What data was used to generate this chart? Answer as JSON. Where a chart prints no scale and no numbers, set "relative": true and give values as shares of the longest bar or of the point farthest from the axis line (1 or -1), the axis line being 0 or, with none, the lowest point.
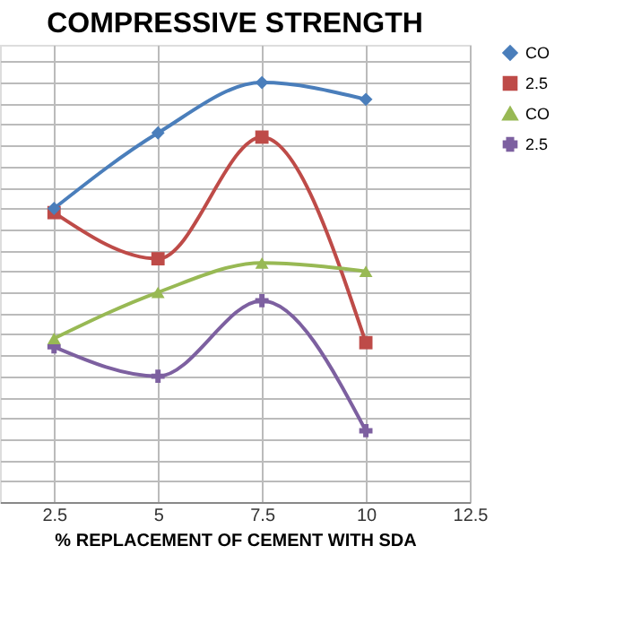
{
  "chart_data": {
    "type": "line",
    "title": "COMPRESSIVE STRENGTH",
    "xlabel": "% REPLACEMENT OF CEMENT WITH SDA",
    "relative": true,
    "x": [
      2.5,
      5,
      7.5,
      10
    ],
    "xlim": [
      1.2,
      12.5
    ],
    "xticks": [
      2.5,
      5,
      7.5,
      10,
      12.5
    ],
    "grid": true,
    "legend": "right",
    "line_style": "solid",
    "series": [
      {
        "name": "CO",
        "color": "#4a7ebb",
        "marker": "diamond",
        "values": [
          0.7,
          0.88,
          1,
          0.96
        ]
      },
      {
        "name": "2.5",
        "color": "#be4b48",
        "marker": "square",
        "values": [
          0.69,
          0.58,
          0.87,
          0.38
        ]
      },
      {
        "name": "CO",
        "color": "#98b954",
        "marker": "triangle",
        "values": [
          0.39,
          0.5,
          0.57,
          0.55
        ]
      },
      {
        "name": "2.5",
        "color": "#7d60a0",
        "marker": "cross",
        "values": [
          0.37,
          0.3,
          0.48,
          0.17
        ]
      }
    ]
  }
}
